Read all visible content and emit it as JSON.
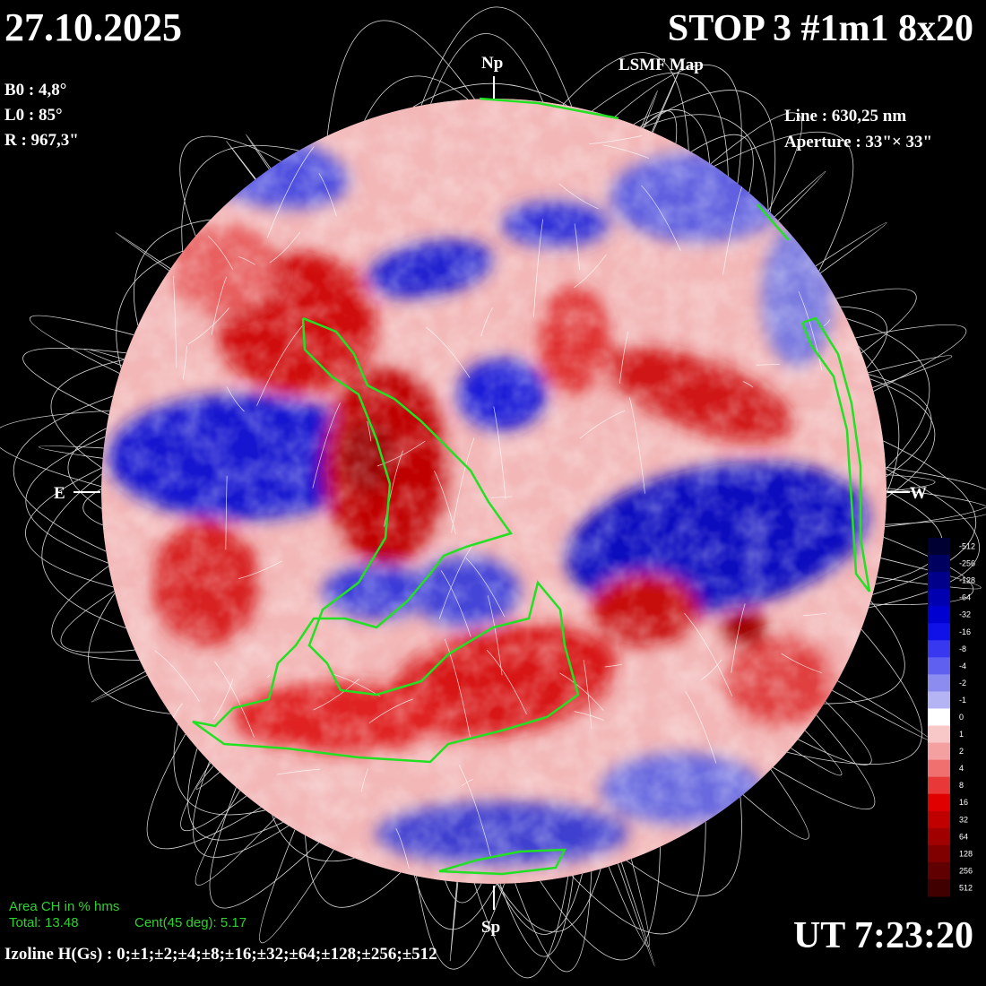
{
  "header": {
    "date": "27.10.2025",
    "title": "STOP 3 #1m1 8x20",
    "subtitle": "LSMF  Map",
    "time": "UT 7:23:20"
  },
  "params_left": [
    "B0 : 4,8°",
    "L0 : 85°",
    "R  : 967,3\""
  ],
  "params_right": [
    "Line :  630,25 nm",
    "Aperture : 33\"× 33\""
  ],
  "directions": {
    "north": "Np",
    "south": "Sp",
    "east": "E",
    "west": "W"
  },
  "colorbar": {
    "labels": [
      -512,
      -256,
      -128,
      -64,
      -32,
      -16,
      -8,
      -4,
      -2,
      -1,
      0,
      1,
      2,
      4,
      8,
      16,
      32,
      64,
      128,
      256,
      512
    ]
  },
  "coronal_holes": {
    "heading": "Area CH in % hms",
    "total": "Total: 13.48",
    "central": "Cent(45 deg): 5.17"
  },
  "isolines": "Izoline H(Gs) : 0;±1;±2;±4;±8;±16;±32;±64;±128;±256;±512"
}
